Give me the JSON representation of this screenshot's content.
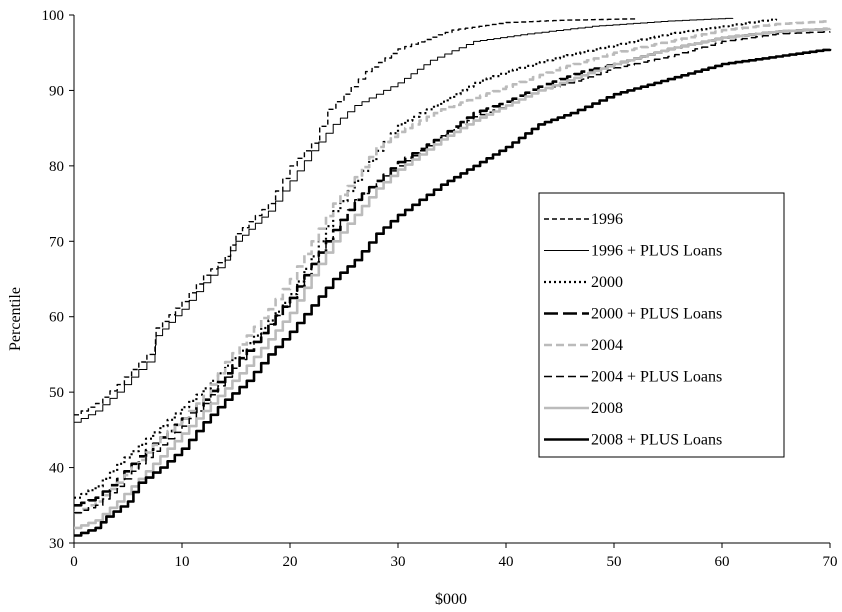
{
  "chart_data": {
    "type": "line",
    "title": "",
    "xlabel": "$000",
    "ylabel": "Percentile",
    "xlim": [
      0,
      70
    ],
    "ylim": [
      30,
      100
    ],
    "xticks": [
      "0",
      "10",
      "20",
      "30",
      "40",
      "50",
      "60",
      "70"
    ],
    "yticks": [
      "30",
      "40",
      "50",
      "60",
      "70",
      "80",
      "90",
      "100"
    ],
    "grid": false,
    "legend_position": "right",
    "series": [
      {
        "name": "1996",
        "color": "#000000",
        "style": "dashed-thin",
        "points": [
          [
            0,
            47
          ],
          [
            2,
            48.5
          ],
          [
            4,
            51
          ],
          [
            6,
            54
          ],
          [
            7.5,
            56
          ],
          [
            7.6,
            58.5
          ],
          [
            10,
            62
          ],
          [
            12,
            65.5
          ],
          [
            14,
            68
          ],
          [
            15,
            71
          ],
          [
            18,
            75
          ],
          [
            20,
            80
          ],
          [
            22,
            83
          ],
          [
            23.5,
            87.5
          ],
          [
            25,
            89.5
          ],
          [
            27,
            92.5
          ],
          [
            30,
            95.5
          ],
          [
            35,
            98
          ],
          [
            40,
            99
          ],
          [
            45,
            99.3
          ],
          [
            52,
            99.5
          ]
        ]
      },
      {
        "name": "1996 + PLUS Loans",
        "color": "#000000",
        "style": "solid-thin",
        "points": [
          [
            0,
            46
          ],
          [
            2,
            47.5
          ],
          [
            4,
            50
          ],
          [
            6,
            53
          ],
          [
            7.5,
            55
          ],
          [
            7.6,
            57.5
          ],
          [
            10,
            61
          ],
          [
            12,
            64.5
          ],
          [
            14,
            67.5
          ],
          [
            15,
            70
          ],
          [
            18,
            74
          ],
          [
            20,
            78
          ],
          [
            22,
            82
          ],
          [
            24,
            85.5
          ],
          [
            26,
            88
          ],
          [
            30,
            91
          ],
          [
            33,
            94
          ],
          [
            37,
            96.5
          ],
          [
            42,
            97.5
          ],
          [
            48,
            98.5
          ],
          [
            55,
            99.2
          ],
          [
            61,
            99.6
          ]
        ]
      },
      {
        "name": "2000",
        "color": "#000000",
        "style": "dotted",
        "points": [
          [
            0,
            36
          ],
          [
            2,
            37.5
          ],
          [
            4,
            40.5
          ],
          [
            6,
            43
          ],
          [
            8,
            45.5
          ],
          [
            10,
            48
          ],
          [
            12,
            50.5
          ],
          [
            14,
            53.5
          ],
          [
            16,
            56.5
          ],
          [
            18,
            59.5
          ],
          [
            20,
            63
          ],
          [
            22,
            68
          ],
          [
            24,
            74
          ],
          [
            26,
            78
          ],
          [
            28,
            82
          ],
          [
            30,
            85.5
          ],
          [
            34,
            88.5
          ],
          [
            37,
            91
          ],
          [
            40,
            92.5
          ],
          [
            45,
            94.5
          ],
          [
            50,
            96
          ],
          [
            55,
            97.5
          ],
          [
            60,
            98.5
          ],
          [
            65,
            99.5
          ]
        ]
      },
      {
        "name": "2000 + PLUS Loans",
        "color": "#000000",
        "style": "long-dash",
        "points": [
          [
            0,
            35
          ],
          [
            2,
            36
          ],
          [
            4,
            38.5
          ],
          [
            6,
            41.5
          ],
          [
            8,
            44
          ],
          [
            10,
            46.5
          ],
          [
            12,
            49
          ],
          [
            14,
            52.5
          ],
          [
            16,
            55.5
          ],
          [
            18,
            59
          ],
          [
            20,
            62.5
          ],
          [
            22,
            67
          ],
          [
            24,
            71.5
          ],
          [
            26,
            75.5
          ],
          [
            28,
            78
          ],
          [
            30,
            80.5
          ],
          [
            34,
            84
          ],
          [
            37,
            87
          ],
          [
            40,
            88.5
          ],
          [
            43,
            90.5
          ],
          [
            47,
            92.5
          ],
          [
            50,
            93.5
          ],
          [
            55,
            95.5
          ],
          [
            60,
            97
          ],
          [
            65,
            97.8
          ],
          [
            70,
            98.2
          ]
        ]
      },
      {
        "name": "2004",
        "color": "#bbbbbb",
        "style": "dashed-thick",
        "points": [
          [
            0,
            34
          ],
          [
            2,
            35.5
          ],
          [
            4,
            38
          ],
          [
            6,
            41
          ],
          [
            8,
            44
          ],
          [
            10,
            46.5
          ],
          [
            12,
            49.5
          ],
          [
            14,
            54
          ],
          [
            16,
            57.5
          ],
          [
            18,
            61
          ],
          [
            20,
            65
          ],
          [
            22,
            70
          ],
          [
            24,
            75
          ],
          [
            26,
            78.5
          ],
          [
            28,
            82.5
          ],
          [
            30,
            84.5
          ],
          [
            34,
            87.5
          ],
          [
            37,
            89
          ],
          [
            40,
            90.5
          ],
          [
            45,
            93
          ],
          [
            50,
            95
          ],
          [
            55,
            96.5
          ],
          [
            60,
            98
          ],
          [
            65,
            98.8
          ],
          [
            70,
            99.2
          ]
        ]
      },
      {
        "name": "2004 + PLUS Loans",
        "color": "#000000",
        "style": "dashed-medium",
        "points": [
          [
            0,
            34
          ],
          [
            2,
            35
          ],
          [
            4,
            37.5
          ],
          [
            6,
            40.5
          ],
          [
            8,
            43
          ],
          [
            10,
            45.5
          ],
          [
            12,
            48.5
          ],
          [
            14,
            52
          ],
          [
            16,
            55.5
          ],
          [
            18,
            59
          ],
          [
            20,
            62.5
          ],
          [
            22,
            67
          ],
          [
            24,
            71.5
          ],
          [
            26,
            75.5
          ],
          [
            28,
            78
          ],
          [
            30,
            80
          ],
          [
            34,
            84
          ],
          [
            37,
            86.5
          ],
          [
            40,
            88
          ],
          [
            43,
            90
          ],
          [
            47,
            91.5
          ],
          [
            50,
            93
          ],
          [
            55,
            94.5
          ],
          [
            60,
            96.5
          ],
          [
            65,
            97.5
          ],
          [
            70,
            97.8
          ]
        ]
      },
      {
        "name": "2008",
        "color": "#bbbbbb",
        "style": "solid-thick",
        "points": [
          [
            0,
            32
          ],
          [
            2,
            33
          ],
          [
            4,
            35.5
          ],
          [
            6,
            38.5
          ],
          [
            8,
            41.5
          ],
          [
            10,
            44.5
          ],
          [
            12,
            47.5
          ],
          [
            14,
            50.5
          ],
          [
            16,
            53.5
          ],
          [
            18,
            57
          ],
          [
            20,
            60.5
          ],
          [
            22,
            65.5
          ],
          [
            24,
            70
          ],
          [
            26,
            73.5
          ],
          [
            28,
            77
          ],
          [
            30,
            79.5
          ],
          [
            34,
            83.5
          ],
          [
            37,
            86
          ],
          [
            40,
            88
          ],
          [
            43,
            90
          ],
          [
            47,
            92
          ],
          [
            50,
            93.5
          ],
          [
            55,
            95.5
          ],
          [
            60,
            97
          ],
          [
            65,
            97.8
          ],
          [
            70,
            98.2
          ]
        ]
      },
      {
        "name": "2008 + PLUS Loans",
        "color": "#000000",
        "style": "solid-thick",
        "points": [
          [
            0,
            31
          ],
          [
            2,
            32
          ],
          [
            3,
            33.5
          ],
          [
            5,
            35.5
          ],
          [
            6,
            38
          ],
          [
            8,
            40
          ],
          [
            10,
            42.5
          ],
          [
            12,
            46
          ],
          [
            14,
            49
          ],
          [
            16,
            51.5
          ],
          [
            18,
            55
          ],
          [
            20,
            58
          ],
          [
            22,
            61.5
          ],
          [
            24,
            65
          ],
          [
            26,
            67.5
          ],
          [
            28,
            71
          ],
          [
            30,
            73.5
          ],
          [
            32,
            75.5
          ],
          [
            34,
            77.5
          ],
          [
            37,
            80
          ],
          [
            40,
            82.5
          ],
          [
            43,
            85.5
          ],
          [
            46,
            87
          ],
          [
            50,
            89.5
          ],
          [
            55,
            91.5
          ],
          [
            60,
            93.5
          ],
          [
            65,
            94.5
          ],
          [
            70,
            95.5
          ]
        ]
      }
    ]
  }
}
